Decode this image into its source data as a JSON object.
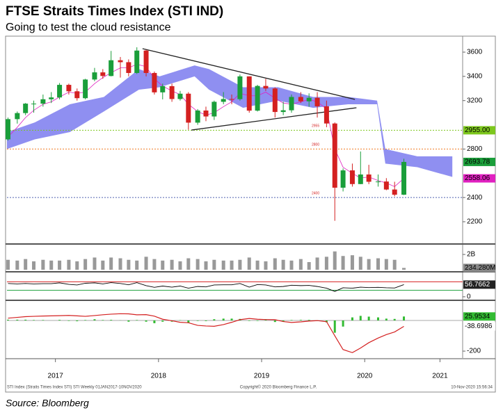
{
  "chart_data": {
    "type": "candlestick",
    "title": "FTSE Straits Times Index (STI IND)",
    "subtitle": "Going to test the cloud resistance",
    "source": "Source: Bloomberg",
    "footer_left": "STI Index (Straits Times Index STI) STI Weekly 01JAN2017-10NOV2020",
    "footer_center": "Copyright© 2020 Bloomberg Finance L.P.",
    "footer_right": "10-Nov-2020 15:56:34",
    "xlim": [
      2017.03,
      2021.45
    ],
    "xticks": [
      {
        "value": 2017.5,
        "label": "2017"
      },
      {
        "value": 2018.5,
        "label": "2018"
      },
      {
        "value": 2019.5,
        "label": "2019"
      },
      {
        "value": 2020.5,
        "label": "2020"
      },
      {
        "value": 2021.23,
        "label": "2021"
      }
    ],
    "x": [
      2017.04,
      2017.13,
      2017.21,
      2017.29,
      2017.38,
      2017.46,
      2017.54,
      2017.63,
      2017.71,
      2017.79,
      2017.88,
      2017.96,
      2018.04,
      2018.13,
      2018.21,
      2018.29,
      2018.38,
      2018.46,
      2018.54,
      2018.63,
      2018.71,
      2018.79,
      2018.88,
      2018.96,
      2019.04,
      2019.13,
      2019.21,
      2019.29,
      2019.38,
      2019.46,
      2019.54,
      2019.63,
      2019.71,
      2019.79,
      2019.88,
      2019.96,
      2020.04,
      2020.13,
      2020.21,
      2020.29,
      2020.38,
      2020.46,
      2020.54,
      2020.63,
      2020.71,
      2020.79,
      2020.88
    ],
    "ylim": [
      2022,
      3732
    ],
    "yticks": [
      2200,
      2400,
      2800,
      3200,
      3400,
      3600
    ],
    "up_color": "#1a9e3a",
    "down_color": "#d42020",
    "open": [
      2880,
      3047,
      3097,
      3175,
      3175,
      3211,
      3226,
      3330,
      3277,
      3220,
      3374,
      3433,
      3403,
      3533,
      3517,
      3428,
      3613,
      3428,
      3268,
      3319,
      3213,
      3257,
      3018,
      3118,
      3069,
      3190,
      3213,
      3212,
      3400,
      3117,
      3321,
      3300,
      3106,
      3120,
      3230,
      3194,
      3223,
      3153,
      3011,
      2481,
      2624,
      2511,
      2590,
      2530,
      2532,
      2466,
      2423
    ],
    "high": [
      3060,
      3110,
      3180,
      3200,
      3250,
      3270,
      3345,
      3340,
      3300,
      3380,
      3470,
      3460,
      3610,
      3560,
      3540,
      3640,
      3620,
      3440,
      3340,
      3340,
      3280,
      3270,
      3130,
      3150,
      3200,
      3270,
      3250,
      3415,
      3400,
      3330,
      3380,
      3310,
      3190,
      3250,
      3270,
      3260,
      3270,
      3200,
      3020,
      2640,
      2680,
      2780,
      2670,
      2590,
      2560,
      2530,
      2720
    ],
    "low": [
      2870,
      3010,
      3080,
      3100,
      3150,
      3180,
      3210,
      3250,
      3200,
      3210,
      3360,
      3380,
      3400,
      3390,
      3400,
      3420,
      3400,
      3250,
      3210,
      3190,
      3200,
      2960,
      3000,
      3030,
      3040,
      3170,
      3170,
      3200,
      3100,
      3110,
      3280,
      3060,
      3080,
      3100,
      3180,
      3150,
      3060,
      2980,
      2208,
      2450,
      2490,
      2510,
      2510,
      2490,
      2460,
      2410,
      2420
    ],
    "close": [
      3047,
      3097,
      3175,
      3175,
      3211,
      3226,
      3330,
      3277,
      3220,
      3374,
      3433,
      3403,
      3533,
      3517,
      3428,
      3613,
      3428,
      3268,
      3319,
      3213,
      3257,
      3018,
      3118,
      3069,
      3190,
      3213,
      3212,
      3400,
      3117,
      3321,
      3300,
      3106,
      3120,
      3230,
      3194,
      3223,
      3153,
      3011,
      2481,
      2624,
      2511,
      2590,
      2530,
      2532,
      2466,
      2423,
      2693.78
    ],
    "close_label_color": "#1a9e3a",
    "kijun": {
      "color": "#e020c0",
      "values": [
        2900,
        2980,
        3060,
        3120,
        3170,
        3190,
        3230,
        3270,
        3260,
        3270,
        3340,
        3390,
        3430,
        3470,
        3470,
        3500,
        3480,
        3380,
        3320,
        3280,
        3250,
        3170,
        3110,
        3080,
        3100,
        3150,
        3190,
        3260,
        3240,
        3240,
        3270,
        3220,
        3180,
        3170,
        3190,
        3210,
        3190,
        3130,
        2800,
        2650,
        2600,
        2560,
        2570,
        2540,
        2520,
        2490,
        2558.06
      ]
    },
    "cloud": {
      "color": "#7b7bee",
      "x": [
        2017.03,
        2017.3,
        2017.64,
        2017.97,
        2018.31,
        2018.51,
        2018.85,
        2018.99,
        2019.32,
        2019.66,
        2020.0,
        2020.34,
        2020.62,
        2020.7,
        2021.01,
        2021.35
      ],
      "upper": [
        2940,
        3020,
        3170,
        3230,
        3460,
        3400,
        3490,
        3460,
        3310,
        3310,
        3230,
        3230,
        3200,
        2800,
        2740,
        2740
      ],
      "lower": [
        2800,
        2880,
        2940,
        3110,
        3290,
        3310,
        3400,
        3290,
        3140,
        3200,
        3140,
        3170,
        3170,
        2680,
        2650,
        2570
      ]
    },
    "trendlines": [
      {
        "x": [
          2018.345,
          2020.405
        ],
        "y": [
          3629,
          3210
        ]
      },
      {
        "x": [
          2018.82,
          2020.42
        ],
        "y": [
          2957,
          3141
        ]
      }
    ],
    "levels": [
      {
        "value": 2955,
        "label": "2955.00",
        "color": "#7dc71d"
      },
      {
        "value": 2800,
        "color": "#f07a20"
      },
      {
        "value": 2400,
        "color": "#5060b0"
      }
    ],
    "volume": {
      "ylim": [
        0,
        3.1
      ],
      "yticks": [
        {
          "value": 2,
          "label": "2B"
        }
      ],
      "color": "#999999",
      "values": [
        1.3,
        1.2,
        1.4,
        1.1,
        1.3,
        1.2,
        1.2,
        1.3,
        1.1,
        1.4,
        1.6,
        1.2,
        1.6,
        1.5,
        1.3,
        1.2,
        1.7,
        1.4,
        1.2,
        1.3,
        1.1,
        1.5,
        1.4,
        1.1,
        1.3,
        1.2,
        1.2,
        1.3,
        1.6,
        1.2,
        1.1,
        1.5,
        1.3,
        1.2,
        1.4,
        1.0,
        1.6,
        1.7,
        2.4,
        1.8,
        1.9,
        1.7,
        1.4,
        1.5,
        1.4,
        1.3,
        0.23428
      ],
      "value_labels": [
        null,
        null,
        null,
        null,
        null,
        null,
        null,
        null,
        null,
        null,
        null,
        null,
        null,
        null,
        null,
        null,
        null,
        null,
        null,
        null,
        null,
        null,
        null,
        null,
        null,
        null,
        null,
        null,
        null,
        null,
        null,
        null,
        null,
        null,
        null,
        null,
        null,
        null,
        null,
        null,
        null,
        null,
        null,
        null,
        null,
        null,
        "234.280M"
      ]
    },
    "rsi": {
      "ylim": [
        -10,
        110
      ],
      "yticks": [
        0
      ],
      "levels": [
        {
          "value": 70,
          "color": "#d42020"
        },
        {
          "value": 30,
          "color": "#1a9e3a"
        }
      ],
      "color": "#000000",
      "values": [
        62,
        60,
        62,
        60,
        61,
        61,
        65,
        58,
        55,
        63,
        65,
        60,
        66,
        62,
        56,
        66,
        52,
        44,
        50,
        45,
        50,
        40,
        48,
        46,
        55,
        56,
        56,
        62,
        45,
        57,
        55,
        46,
        48,
        54,
        52,
        53,
        48,
        40,
        25,
        42,
        40,
        45,
        43,
        44,
        42,
        41,
        56.7662
      ]
    },
    "macd": {
      "ylim": [
        -245,
        127
      ],
      "yticks": [
        -200
      ],
      "signal": {
        "color": "#d42020",
        "values": [
          15,
          20,
          25,
          27,
          29,
          30,
          31,
          33,
          30,
          27,
          32,
          37,
          41,
          44,
          43,
          37,
          38,
          28,
          8,
          -2,
          -12,
          -15,
          -32,
          -36,
          -38,
          -27,
          -12,
          5,
          13,
          8,
          6,
          5,
          -7,
          -13,
          -9,
          -4,
          -1,
          -8,
          -100,
          -190,
          -210,
          -180,
          -145,
          -115,
          -92,
          -75,
          -38.6986
        ]
      },
      "histogram": {
        "color": "#33bb33",
        "values": [
          5,
          5,
          5,
          3,
          3,
          0,
          4,
          -3,
          -5,
          3,
          8,
          3,
          4,
          1,
          -8,
          3,
          -8,
          -18,
          -8,
          -8,
          2,
          -15,
          -3,
          -4,
          8,
          12,
          12,
          10,
          -3,
          -3,
          4,
          -10,
          -8,
          3,
          4,
          4,
          -4,
          -12,
          -80,
          -40,
          20,
          30,
          25,
          20,
          12,
          10,
          25.9534
        ]
      }
    }
  }
}
